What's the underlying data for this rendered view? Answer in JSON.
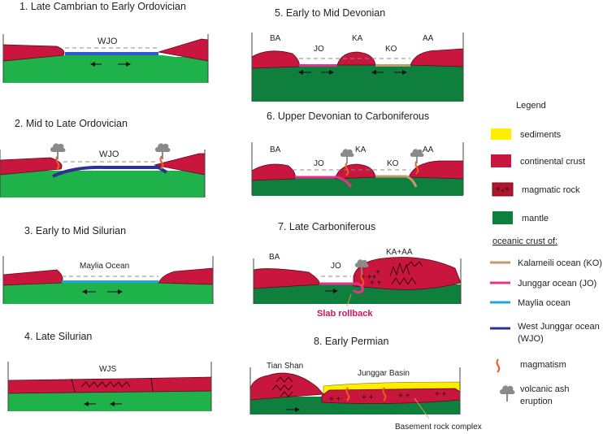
{
  "panels": [
    {
      "title": "1. Late Cambrian to Early Ordovician",
      "labels": [
        "WJO"
      ]
    },
    {
      "title": "2. Mid to Late Ordovician",
      "labels": [
        "WJO"
      ]
    },
    {
      "title": "3. Early to Mid Silurian",
      "labels": [
        "Maylia Ocean"
      ]
    },
    {
      "title": "4. Late Silurian",
      "labels": [
        "WJS"
      ]
    },
    {
      "title": "5. Early to Mid Devonian",
      "labels": [
        "BA",
        "JO",
        "KA",
        "KO",
        "AA"
      ]
    },
    {
      "title": "6. Upper Devonian to Carboniferous",
      "labels": [
        "BA",
        "JO",
        "KA",
        "KO",
        "AA"
      ]
    },
    {
      "title": "7. Late Carboniferous",
      "labels": [
        "BA",
        "JO",
        "KA+AA"
      ],
      "annotation": "Slab rollback"
    },
    {
      "title": "8. Early Permian",
      "labels": [
        "Tian Shan",
        "Junggar Basin"
      ],
      "annotation": "Basement rock complex"
    }
  ],
  "legend": {
    "title": "Legend",
    "items": [
      {
        "label": "sediments",
        "color": "#ffee00"
      },
      {
        "label": "continental crust",
        "color": "#c8163e"
      },
      {
        "label": "magmatic rock",
        "color": "#b01530"
      },
      {
        "label": "mantle",
        "color": "#0f7f3e"
      }
    ],
    "oceanic_heading": "oceanic crust of:",
    "oceanic": [
      {
        "label": "Kalameili ocean (KO)",
        "color": "#c49a6c"
      },
      {
        "label": "Junggar ocean (JO)",
        "color": "#e8308a"
      },
      {
        "label": "Maylia ocean",
        "color": "#1ea7e1"
      },
      {
        "label": "West Junggar ocean",
        "label2": "(WJO)",
        "color": "#2e3192"
      }
    ],
    "magmatism": "magmatism",
    "ash_line1": "volcanic ash",
    "ash_line2": "eruption"
  },
  "colors": {
    "slab_rollback": "#d4145a",
    "mantle_light": "#1fb24a"
  }
}
